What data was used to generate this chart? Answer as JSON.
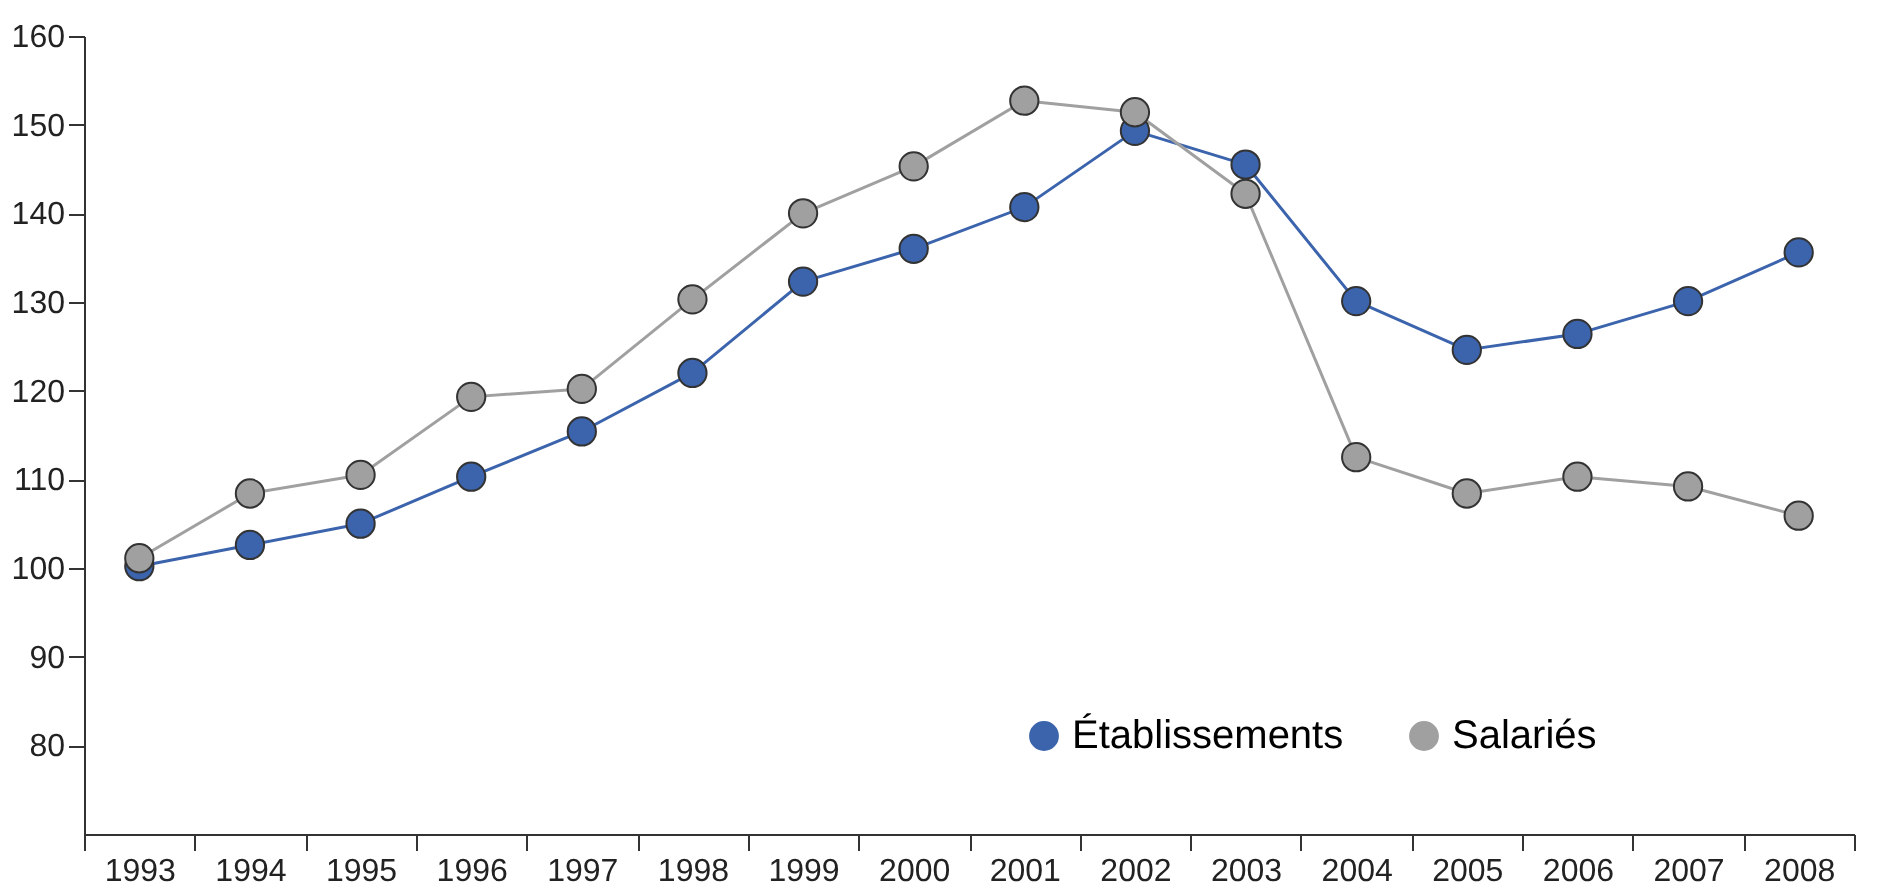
{
  "chart_data": {
    "type": "line",
    "categories": [
      "1993",
      "1994",
      "1995",
      "1996",
      "1997",
      "1998",
      "1999",
      "2000",
      "2001",
      "2002",
      "2003",
      "2004",
      "2005",
      "2006",
      "2007",
      "2008"
    ],
    "series": [
      {
        "name": "Établissements",
        "color": "#3b64ad",
        "values": [
          100.2,
          102.6,
          105.0,
          110.3,
          115.4,
          122.0,
          132.3,
          136.0,
          140.7,
          149.3,
          145.5,
          130.1,
          124.6,
          126.4,
          130.1,
          135.6
        ]
      },
      {
        "name": "Salariés",
        "color": "#a0a0a0",
        "values": [
          101.1,
          108.4,
          110.5,
          119.3,
          120.2,
          130.3,
          140.0,
          145.3,
          152.7,
          151.4,
          142.2,
          112.5,
          108.4,
          110.3,
          109.2,
          105.9
        ]
      }
    ],
    "ylim": [
      70,
      160
    ],
    "yticks": [
      80,
      90,
      100,
      110,
      120,
      130,
      140,
      150,
      160
    ],
    "grid": false,
    "legend": "bottom right",
    "marker": "circle",
    "line_style": "solid"
  }
}
